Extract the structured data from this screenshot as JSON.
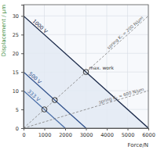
{
  "chart_data": {
    "type": "line",
    "xlabel": "Force/N",
    "ylabel": "Displacement / µm",
    "xlim": [
      0,
      6000
    ],
    "xticks": [
      0,
      1000,
      2000,
      3000,
      4000,
      5000,
      6000
    ],
    "ylim": [
      0,
      33
    ],
    "yticks": [
      0,
      5,
      10,
      15,
      20,
      25,
      30
    ],
    "grid": true,
    "series": [
      {
        "name": "1000 V",
        "type": "area",
        "color": "#1b2a4a",
        "x": [
          0,
          6000
        ],
        "values": [
          30,
          0
        ]
      },
      {
        "name": "500 V",
        "type": "area",
        "color": "#2e4f8a",
        "x": [
          0,
          3000
        ],
        "values": [
          15,
          0
        ]
      },
      {
        "name": "333 V",
        "type": "area",
        "color": "#4a6fa8",
        "x": [
          0,
          2000
        ],
        "values": [
          10,
          0
        ]
      },
      {
        "name": "spring Kₛ = 200 N/µm",
        "type": "line",
        "line_style": "dashed",
        "color": "#8a8a8a",
        "x": [
          0,
          6000
        ],
        "values": [
          0,
          30
        ]
      },
      {
        "name": "spring Kₛ = 600 N/µm",
        "type": "line",
        "line_style": "dashed",
        "color": "#8a8a8a",
        "x": [
          0,
          6000
        ],
        "values": [
          0,
          10
        ]
      },
      {
        "type": "scatter",
        "marker": "circle",
        "color": "#333333",
        "x": [
          1000,
          1500,
          3000
        ],
        "values": [
          5,
          7.5,
          15
        ]
      }
    ],
    "annotations": [
      {
        "text": "max. work",
        "x": 3000,
        "y": 15
      }
    ]
  }
}
